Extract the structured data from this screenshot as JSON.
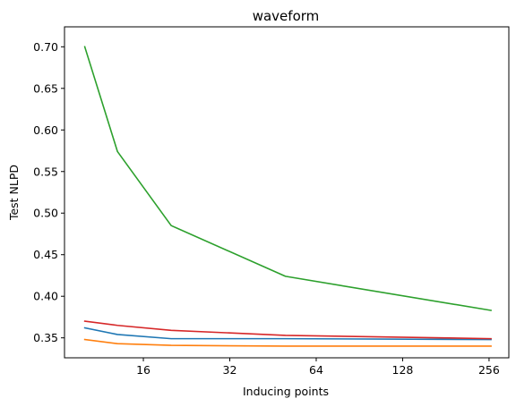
{
  "chart_data": {
    "type": "line",
    "title": "waveform",
    "xlabel": "Inducing points",
    "ylabel": "Test NLPD",
    "x_scale": "log2",
    "xlim": [
      8.5,
      300
    ],
    "ylim": [
      0.326,
      0.724
    ],
    "x_ticks": [
      16,
      32,
      64,
      128,
      256
    ],
    "x_tick_labels": [
      "16",
      "32",
      "64",
      "128",
      "256"
    ],
    "y_ticks": [
      0.35,
      0.4,
      0.45,
      0.5,
      0.55,
      0.6,
      0.65,
      0.7
    ],
    "y_tick_labels": [
      "0.35",
      "0.40",
      "0.45",
      "0.50",
      "0.55",
      "0.60",
      "0.65",
      "0.70"
    ],
    "grid": false,
    "x": [
      10,
      13,
      20,
      50,
      260
    ],
    "series": [
      {
        "color": "#1f77b4",
        "values": [
          0.362,
          0.354,
          0.349,
          0.349,
          0.348
        ]
      },
      {
        "color": "#ff7f0e",
        "values": [
          0.348,
          0.343,
          0.341,
          0.34,
          0.34
        ]
      },
      {
        "color": "#2ca02c",
        "values": [
          0.7,
          0.574,
          0.485,
          0.424,
          0.383
        ]
      },
      {
        "color": "#d62728",
        "values": [
          0.37,
          0.365,
          0.359,
          0.353,
          0.349
        ]
      }
    ]
  }
}
